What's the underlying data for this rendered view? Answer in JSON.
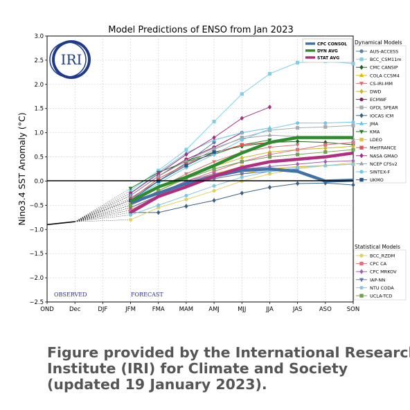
{
  "caption": {
    "line1": "Figure provided by the International Research",
    "line2": "Institute (IRI) for Climate and Society",
    "line3": "(updated 19 January 2023)."
  },
  "logo_text": "IRI",
  "chart_data": {
    "type": "line",
    "title": "Model Predictions of ENSO from Jan 2023",
    "xlabel": "",
    "ylabel": "Nino3.4 SST Anomaly (°C)",
    "ylim": [
      -2.5,
      3.0
    ],
    "yticks": [
      "3.0",
      "2.5",
      "2.0",
      "1.5",
      "1.0",
      "0.5",
      "0.0",
      "−0.5",
      "−1.0",
      "−1.5",
      "−2.0",
      "−2.5"
    ],
    "categories": [
      "OND",
      "Dec",
      "DJF",
      "JFM",
      "FMA",
      "MAM",
      "AMJ",
      "MJJ",
      "JJA",
      "JAS",
      "ASO",
      "SON"
    ],
    "annotations": {
      "observed": "OBSERVED",
      "forecast": "FORECAST"
    },
    "grid": true,
    "observed": {
      "categories": [
        "OND",
        "Dec"
      ],
      "values": [
        -0.9,
        -0.84
      ]
    },
    "legend_dynamical_title": "Dynamical Models",
    "legend_statistical_title": "Statistical Models",
    "summary_series": [
      {
        "name": "CPC CONSOL",
        "color": "#3f72a8",
        "values": [
          -0.45,
          -0.25,
          -0.05,
          0.1,
          0.22,
          0.25,
          0.2,
          0.0,
          0.02
        ]
      },
      {
        "name": "DYN AVG",
        "color": "#2e8b2e",
        "values": [
          -0.42,
          -0.12,
          0.08,
          0.32,
          0.58,
          0.8,
          0.9,
          0.9,
          0.9
        ]
      },
      {
        "name": "STAT AVG",
        "color": "#b0307f",
        "values": [
          -0.65,
          -0.32,
          -0.12,
          0.1,
          0.28,
          0.4,
          0.45,
          0.5,
          0.58
        ]
      }
    ],
    "dynamical_series": [
      {
        "name": "AUS-ACCESS",
        "color": "#5b7fa6",
        "marker": "circle",
        "values": [
          -0.35,
          0.0,
          0.38,
          0.8
        ]
      },
      {
        "name": "BCC_CSM11m",
        "color": "#7fd0e6",
        "marker": "square",
        "values": [
          -0.2,
          0.22,
          0.65,
          1.23,
          1.8,
          2.22,
          2.45,
          2.48,
          2.43
        ]
      },
      {
        "name": "CMC CANSIP",
        "color": "#1f5c1f",
        "marker": "diamond",
        "values": [
          -0.3,
          0.1,
          0.42,
          0.6,
          0.72,
          0.8,
          0.82,
          0.8,
          0.75
        ]
      },
      {
        "name": "COLA CCSM4",
        "color": "#e6b800",
        "marker": "triangle-up",
        "values": [
          -0.6,
          -0.3,
          -0.1,
          0.05,
          0.15,
          0.25,
          0.3,
          0.32,
          0.35
        ]
      },
      {
        "name": "CS-IRI-MM",
        "color": "#e07070",
        "marker": "triangle-down",
        "values": [
          -0.45,
          -0.15,
          0.15,
          0.4,
          0.6,
          0.7,
          0.75
        ]
      },
      {
        "name": "DWD",
        "color": "#c8b820",
        "marker": "diamond",
        "values": [
          -0.5,
          -0.2,
          0.08,
          0.3,
          0.48,
          0.6,
          0.65,
          0.68,
          0.72
        ]
      },
      {
        "name": "ECMWF",
        "color": "#8b1a6b",
        "marker": "circle",
        "values": [
          -0.3,
          0.1,
          0.45,
          0.7,
          1.0
        ]
      },
      {
        "name": "GFDL SPEAR",
        "color": "#aaaaaa",
        "marker": "square",
        "values": [
          -0.4,
          0.0,
          0.35,
          0.65,
          0.9,
          1.05,
          1.1,
          1.12,
          1.15
        ]
      },
      {
        "name": "IOCAS ICM",
        "color": "#3a6080",
        "marker": "diamond",
        "values": [
          -0.65,
          -0.65,
          -0.52,
          -0.4,
          -0.25,
          -0.13,
          -0.05,
          -0.04,
          -0.08
        ]
      },
      {
        "name": "JMA",
        "color": "#6cc0e0",
        "marker": "triangle-up",
        "values": [
          -0.25,
          0.18,
          0.58,
          0.85,
          1.0,
          1.1
        ]
      },
      {
        "name": "KMA",
        "color": "#2a7a2a",
        "marker": "triangle-down",
        "values": [
          -0.15,
          0.18,
          0.4,
          0.55,
          0.75,
          0.85
        ]
      },
      {
        "name": "LDEO",
        "color": "#e8c040",
        "marker": "square",
        "values": [
          -0.55,
          -0.3,
          -0.05,
          0.15,
          0.3
        ]
      },
      {
        "name": "MetFRANCE",
        "color": "#e85050",
        "marker": "square",
        "values": [
          -0.38,
          0.05,
          0.35,
          0.58,
          0.75,
          0.8
        ]
      },
      {
        "name": "NASA GMAO",
        "color": "#a03080",
        "marker": "diamond",
        "values": [
          -0.25,
          0.15,
          0.55,
          0.9,
          1.3,
          1.53
        ]
      },
      {
        "name": "NCEP CFSv2",
        "color": "#9aa0a8",
        "marker": "triangle-up",
        "values": [
          -0.3,
          0.1,
          0.42,
          0.68,
          0.88,
          0.95,
          0.92,
          0.9,
          0.88
        ]
      },
      {
        "name": "SINTEX-F",
        "color": "#70c8e8",
        "marker": "circle",
        "values": [
          -0.4,
          -0.05,
          0.28,
          0.55,
          0.85,
          1.08,
          1.2,
          1.2,
          1.22
        ]
      },
      {
        "name": "UKMO",
        "color": "#1a5890",
        "marker": "square",
        "values": [
          -0.4,
          0.0,
          0.32,
          0.6
        ]
      }
    ],
    "statistical_series": [
      {
        "name": "BCC_RZDM",
        "color": "#e0d060",
        "marker": "circle",
        "values": [
          -0.8,
          -0.55,
          -0.38,
          -0.2,
          0.0,
          0.15,
          0.25,
          0.32,
          0.38
        ]
      },
      {
        "name": "CPC CA",
        "color": "#e07080",
        "marker": "square",
        "values": [
          -0.6,
          -0.3,
          0.0,
          0.2,
          0.4,
          0.55,
          0.65,
          0.75,
          0.8
        ]
      },
      {
        "name": "CPC MRKOV",
        "color": "#a060b0",
        "marker": "diamond",
        "values": [
          -0.5,
          -0.25,
          0.0,
          0.15,
          0.25,
          0.3,
          0.35,
          0.4,
          0.42
        ]
      },
      {
        "name": "IAP-NN",
        "color": "#6070c0",
        "marker": "triangle-down",
        "values": [
          -0.55,
          -0.3,
          -0.1,
          0.05,
          0.15,
          0.2,
          0.25
        ]
      },
      {
        "name": "NTU CODA",
        "color": "#80c8e0",
        "marker": "circle",
        "values": [
          -0.7,
          -0.5,
          -0.3,
          -0.1,
          0.08,
          0.2,
          0.28,
          0.32,
          0.35
        ]
      },
      {
        "name": "UCLA-TCD",
        "color": "#70a050",
        "marker": "square",
        "values": [
          -0.5,
          -0.2,
          0.05,
          0.25,
          0.4,
          0.5,
          0.55,
          0.6,
          0.65
        ]
      }
    ]
  }
}
